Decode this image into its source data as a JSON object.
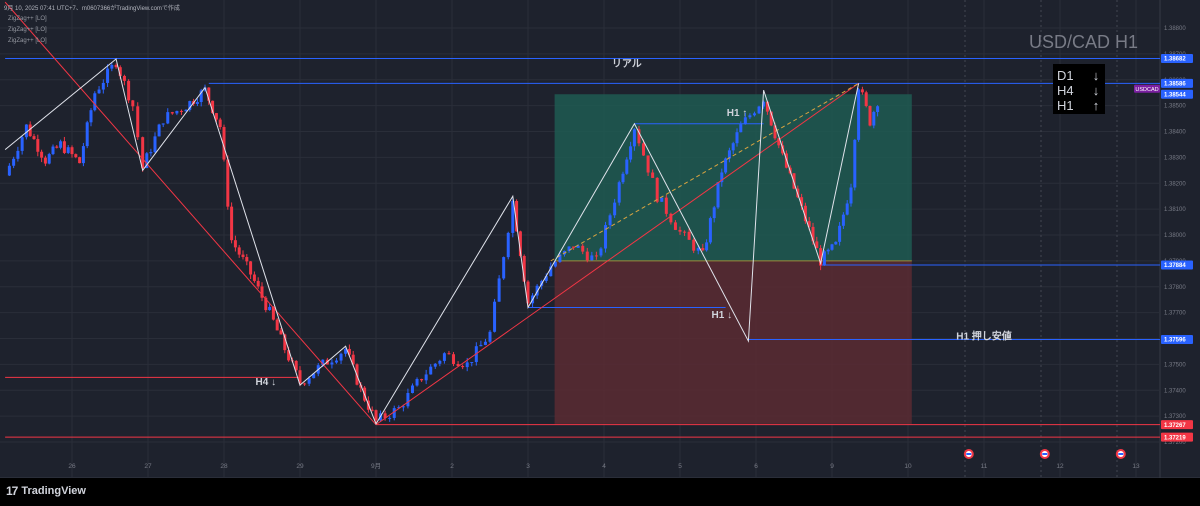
{
  "header": {
    "caption": "9月 10, 2025 07:41 UTC+7、m0607366がTradingView.comで作成",
    "indicators": [
      "ZigZag++ [LO]",
      "ZigZag++ [LO]",
      "ZigZag++ [LO]"
    ]
  },
  "footer": {
    "brand": "TradingView",
    "logo_mark": "17"
  },
  "colors": {
    "background": "#1e222d",
    "up": "#2962ff",
    "down": "#f23645",
    "zigzag": "#e0e3eb",
    "level_blue": "#2962ff",
    "level_red": "#f23645",
    "profit_zone": "#1f5a52",
    "loss_zone": "#5a2a33",
    "symbol_badge": "#7b1fa2"
  },
  "chart_data": {
    "type": "candlestick",
    "title": "USD/CAD H1",
    "symbol": "USDCAD",
    "ylim": [
      1.372,
      1.389
    ],
    "y_ticks": [
      "1.38800",
      "1.38700",
      "1.38600",
      "1.38500",
      "1.38400",
      "1.38300",
      "1.38200",
      "1.38100",
      "1.38000",
      "1.37900",
      "1.37800",
      "1.37700",
      "1.37600",
      "1.37500",
      "1.37400",
      "1.37300",
      "1.37200"
    ],
    "y_tick_values": [
      1.388,
      1.387,
      1.386,
      1.385,
      1.384,
      1.383,
      1.382,
      1.381,
      1.38,
      1.379,
      1.378,
      1.377,
      1.376,
      1.375,
      1.374,
      1.373,
      1.372
    ],
    "x_ticks": [
      {
        "label": "26",
        "day": 0
      },
      {
        "label": "27",
        "day": 1
      },
      {
        "label": "28",
        "day": 2
      },
      {
        "label": "29",
        "day": 3
      },
      {
        "label": "9月",
        "day": 4
      },
      {
        "label": "2",
        "day": 5
      },
      {
        "label": "3",
        "day": 6
      },
      {
        "label": "4",
        "day": 7
      },
      {
        "label": "5",
        "day": 8
      },
      {
        "label": "6",
        "day": 9
      },
      {
        "label": "9",
        "day": 10
      },
      {
        "label": "10",
        "day": 11
      },
      {
        "label": "11",
        "day": 12
      },
      {
        "label": "12",
        "day": 13
      },
      {
        "label": "13",
        "day": 14
      }
    ],
    "x_range_days": [
      -0.88,
      14.6
    ],
    "price_lines": [
      {
        "label": "1.38682",
        "value": 1.38682,
        "color": "#2962ff"
      },
      {
        "label": "1.38586",
        "value": 1.38586,
        "color": "#2962ff"
      },
      {
        "label": "1.38544",
        "value": 1.38544,
        "color": "#2962ff"
      },
      {
        "label": "1.37884",
        "value": 1.37884,
        "color": "#2962ff"
      },
      {
        "label": "1.37596",
        "value": 1.37596,
        "color": "#2962ff"
      },
      {
        "label": "1.37267",
        "value": 1.37267,
        "color": "#f23645"
      },
      {
        "label": "1.37219",
        "value": 1.37219,
        "color": "#f23645"
      }
    ],
    "current_price": {
      "symbol": "USDCAD",
      "value": 1.38565
    },
    "zigzag": [
      {
        "day": -0.88,
        "price": 1.3833
      },
      {
        "day": 0.58,
        "price": 1.3868
      },
      {
        "day": 0.93,
        "price": 1.3825
      },
      {
        "day": 1.75,
        "price": 1.3857
      },
      {
        "day": 3.0,
        "price": 1.3742
      },
      {
        "day": 3.6,
        "price": 1.3757
      },
      {
        "day": 4.0,
        "price": 1.3727
      },
      {
        "day": 5.8,
        "price": 1.3815
      },
      {
        "day": 6.0,
        "price": 1.3772
      },
      {
        "day": 7.4,
        "price": 1.3843
      },
      {
        "day": 8.9,
        "price": 1.3759
      },
      {
        "day": 9.1,
        "price": 1.3856
      },
      {
        "day": 9.85,
        "price": 1.3789
      },
      {
        "day": 10.35,
        "price": 1.38586
      }
    ],
    "trendlines": [
      {
        "from": {
          "day": -0.88,
          "price": 1.389
        },
        "to": {
          "day": 4.0,
          "price": 1.37267
        },
        "color": "#f23645"
      },
      {
        "from": {
          "day": 4.0,
          "price": 1.37267
        },
        "to": {
          "day": 10.35,
          "price": 1.38586
        },
        "color": "#f23645"
      },
      {
        "from": {
          "day": 6.3,
          "price": 1.379
        },
        "to": {
          "day": 10.35,
          "price": 1.38586
        },
        "color": "#d9a441",
        "dashed": true
      }
    ],
    "horizontal_segments": [
      {
        "from_day": 1.8,
        "to_day": 14.6,
        "price": 1.38586,
        "color": "#2962ff"
      },
      {
        "from_day": 7.4,
        "to_day": 9.1,
        "price": 1.3843,
        "color": "#2962ff"
      },
      {
        "from_day": 6.0,
        "to_day": 8.6,
        "price": 1.3772,
        "color": "#2962ff"
      },
      {
        "from_day": 8.9,
        "to_day": 14.6,
        "price": 1.37596,
        "color": "#2962ff"
      },
      {
        "from_day": 9.85,
        "to_day": 14.6,
        "price": 1.37884,
        "color": "#2962ff"
      },
      {
        "from_day": -0.88,
        "to_day": 3.0,
        "price": 1.3745,
        "color": "#f23645"
      },
      {
        "from_day": 4.0,
        "to_day": 14.6,
        "price": 1.37267,
        "color": "#f23645"
      },
      {
        "from_day": -0.88,
        "to_day": 14.6,
        "price": 1.37219,
        "color": "#f23645"
      },
      {
        "from_day": -0.88,
        "to_day": 14.6,
        "price": 1.38682,
        "color": "#2962ff"
      }
    ],
    "position_box": {
      "from_day": 6.35,
      "to_day": 11.05,
      "entry": 1.379,
      "target": 1.38544,
      "stop": 1.3727
    },
    "annotations": [
      {
        "text": "リアル",
        "day": 7.3,
        "price": 1.3865,
        "color": "#d1d4dc"
      },
      {
        "text": "H1 ↑",
        "day": 8.75,
        "price": 1.3846,
        "color": "#d1d4dc"
      },
      {
        "text": "H1 ↓",
        "day": 8.55,
        "price": 1.3768,
        "color": "#d1d4dc"
      },
      {
        "text": "H4 ↓",
        "day": 2.55,
        "price": 1.3742,
        "color": "#d1d4dc"
      },
      {
        "text": "H1 押し安値",
        "day": 12.0,
        "price": 1.37596,
        "color": "#d1d4dc"
      }
    ],
    "trend_table": [
      {
        "tf": "D1",
        "dir": "↓"
      },
      {
        "tf": "H4",
        "dir": "↓"
      },
      {
        "tf": "H1",
        "dir": "↑"
      }
    ],
    "event_markers_days": [
      11.8,
      12.8,
      13.8
    ],
    "candle_path": [
      [
        -0.88,
        1.3823
      ],
      [
        -0.6,
        1.3842
      ],
      [
        -0.35,
        1.3829
      ],
      [
        -0.15,
        1.3835
      ],
      [
        0.1,
        1.3828
      ],
      [
        0.3,
        1.3855
      ],
      [
        0.58,
        1.3867
      ],
      [
        0.8,
        1.385
      ],
      [
        0.93,
        1.3826
      ],
      [
        1.2,
        1.3845
      ],
      [
        1.5,
        1.385
      ],
      [
        1.75,
        1.3856
      ],
      [
        1.95,
        1.3842
      ],
      [
        2.1,
        1.3798
      ],
      [
        2.35,
        1.3785
      ],
      [
        2.6,
        1.377
      ],
      [
        2.8,
        1.3756
      ],
      [
        3.0,
        1.3743
      ],
      [
        3.3,
        1.375
      ],
      [
        3.6,
        1.3756
      ],
      [
        3.8,
        1.374
      ],
      [
        4.0,
        1.3728
      ],
      [
        4.3,
        1.3733
      ],
      [
        4.6,
        1.3745
      ],
      [
        4.9,
        1.3754
      ],
      [
        5.2,
        1.375
      ],
      [
        5.5,
        1.3762
      ],
      [
        5.8,
        1.3813
      ],
      [
        6.0,
        1.3774
      ],
      [
        6.3,
        1.3788
      ],
      [
        6.6,
        1.3796
      ],
      [
        6.9,
        1.379
      ],
      [
        7.2,
        1.382
      ],
      [
        7.4,
        1.3842
      ],
      [
        7.7,
        1.3815
      ],
      [
        8.0,
        1.3801
      ],
      [
        8.3,
        1.3792
      ],
      [
        8.55,
        1.3825
      ],
      [
        8.8,
        1.3842
      ],
      [
        9.1,
        1.3853
      ],
      [
        9.35,
        1.383
      ],
      [
        9.6,
        1.381
      ],
      [
        9.85,
        1.379
      ],
      [
        10.05,
        1.3796
      ],
      [
        10.25,
        1.382
      ],
      [
        10.35,
        1.3858
      ],
      [
        10.5,
        1.3844
      ],
      [
        10.6,
        1.3852
      ]
    ]
  }
}
